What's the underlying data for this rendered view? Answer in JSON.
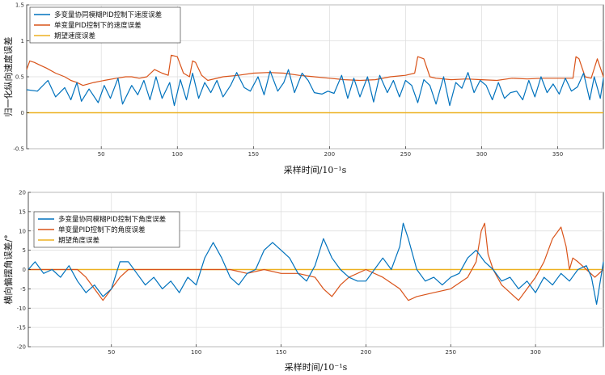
{
  "colors": {
    "series1": "#0072BD",
    "series2": "#D95319",
    "series3": "#EDB120"
  },
  "chart_data": [
    {
      "type": "line",
      "xlabel": "采样时间/10⁻¹s",
      "ylabel": "归一化纵向速度误差",
      "xlim": [
        1,
        380
      ],
      "ylim": [
        -0.5,
        1.5
      ],
      "xticks": [
        50,
        100,
        150,
        200,
        250,
        300,
        350
      ],
      "yticks": [
        -0.5,
        0,
        0.5,
        1,
        1.5
      ],
      "ytick_labels": [
        "-0.5",
        "0",
        "0.5",
        "1",
        "1.5"
      ],
      "grid": true,
      "legend_position": "top-left",
      "series": [
        {
          "name": "多变量协同模糊PID控制下速度误差",
          "color": "#0072BD",
          "x": [
            1,
            8,
            15,
            20,
            26,
            30,
            34,
            37,
            42,
            48,
            52,
            56,
            61,
            64,
            70,
            74,
            78,
            82,
            86,
            90,
            95,
            98,
            102,
            106,
            110,
            114,
            118,
            122,
            126,
            130,
            135,
            139,
            144,
            148,
            153,
            157,
            161,
            166,
            170,
            173,
            177,
            182,
            186,
            190,
            195,
            199,
            203,
            208,
            212,
            216,
            220,
            225,
            229,
            233,
            238,
            242,
            246,
            250,
            254,
            258,
            262,
            266,
            270,
            275,
            279,
            283,
            287,
            291,
            295,
            299,
            303,
            307,
            311,
            315,
            319,
            323,
            327,
            331,
            335,
            339,
            343,
            347,
            351,
            355,
            359,
            363,
            367,
            371,
            374,
            378,
            380
          ],
          "values": [
            0.32,
            0.3,
            0.45,
            0.22,
            0.35,
            0.18,
            0.42,
            0.16,
            0.33,
            0.14,
            0.38,
            0.2,
            0.48,
            0.12,
            0.38,
            0.25,
            0.45,
            0.18,
            0.5,
            0.2,
            0.42,
            0.1,
            0.46,
            0.18,
            0.55,
            0.2,
            0.42,
            0.28,
            0.45,
            0.22,
            0.38,
            0.56,
            0.35,
            0.3,
            0.5,
            0.25,
            0.58,
            0.3,
            0.42,
            0.6,
            0.28,
            0.55,
            0.45,
            0.28,
            0.26,
            0.3,
            0.27,
            0.52,
            0.2,
            0.48,
            0.22,
            0.5,
            0.15,
            0.52,
            0.28,
            0.45,
            0.22,
            0.45,
            0.38,
            0.14,
            0.46,
            0.38,
            0.12,
            0.5,
            0.1,
            0.42,
            0.34,
            0.56,
            0.28,
            0.45,
            0.38,
            0.18,
            0.42,
            0.2,
            0.28,
            0.3,
            0.18,
            0.45,
            0.22,
            0.5,
            0.28,
            0.4,
            0.26,
            0.48,
            0.3,
            0.36,
            0.55,
            0.18,
            0.5,
            0.2,
            0.48
          ]
        },
        {
          "name": "单变量PID控制下的速度误差",
          "color": "#D95319",
          "x": [
            1,
            3,
            6,
            10,
            14,
            20,
            26,
            30,
            34,
            38,
            45,
            52,
            60,
            66,
            70,
            75,
            80,
            85,
            90,
            94,
            96,
            100,
            104,
            108,
            110,
            112,
            116,
            120,
            130,
            140,
            150,
            160,
            170,
            180,
            190,
            200,
            210,
            220,
            230,
            240,
            250,
            256,
            258,
            262,
            266,
            270,
            280,
            290,
            300,
            310,
            320,
            330,
            340,
            350,
            360,
            362,
            364,
            368,
            372,
            376,
            380
          ],
          "values": [
            0.6,
            0.72,
            0.7,
            0.66,
            0.62,
            0.55,
            0.5,
            0.45,
            0.42,
            0.38,
            0.42,
            0.45,
            0.48,
            0.5,
            0.5,
            0.48,
            0.5,
            0.6,
            0.55,
            0.52,
            0.8,
            0.78,
            0.55,
            0.5,
            0.72,
            0.7,
            0.52,
            0.45,
            0.5,
            0.52,
            0.55,
            0.56,
            0.55,
            0.52,
            0.5,
            0.48,
            0.46,
            0.45,
            0.46,
            0.5,
            0.52,
            0.55,
            0.78,
            0.75,
            0.5,
            0.48,
            0.46,
            0.47,
            0.46,
            0.45,
            0.48,
            0.47,
            0.48,
            0.48,
            0.48,
            0.78,
            0.75,
            0.5,
            0.48,
            0.75,
            0.5
          ]
        },
        {
          "name": "期望速度误差",
          "color": "#EDB120",
          "x": [
            1,
            380
          ],
          "values": [
            0,
            0
          ]
        }
      ]
    },
    {
      "type": "line",
      "xlabel": "采样时间/10⁻¹s",
      "ylabel": "横向偏摆角误差/°",
      "xlim": [
        1,
        340
      ],
      "ylim": [
        -20,
        20
      ],
      "xticks": [
        50,
        100,
        150,
        200,
        250,
        300
      ],
      "yticks": [
        -20,
        -15,
        -10,
        -5,
        0,
        5,
        10,
        15,
        20
      ],
      "ytick_labels": [
        "-20",
        "-15",
        "-10",
        "-5",
        "0",
        "5",
        "10",
        "15",
        "20"
      ],
      "grid": true,
      "legend_position": "top-left",
      "series": [
        {
          "name": "多变量协同模糊PID控制下角度误差",
          "color": "#0072BD",
          "x": [
            1,
            5,
            10,
            15,
            20,
            25,
            30,
            35,
            40,
            45,
            50,
            55,
            60,
            65,
            70,
            75,
            80,
            85,
            90,
            95,
            100,
            105,
            110,
            115,
            120,
            125,
            130,
            135,
            140,
            145,
            150,
            155,
            160,
            165,
            170,
            175,
            180,
            185,
            190,
            195,
            200,
            205,
            210,
            215,
            220,
            222,
            225,
            230,
            235,
            240,
            245,
            250,
            255,
            260,
            265,
            270,
            275,
            280,
            285,
            290,
            295,
            300,
            305,
            310,
            315,
            320,
            325,
            330,
            333,
            336,
            340
          ],
          "values": [
            0,
            2,
            -1,
            0,
            -2,
            1,
            -3,
            -6,
            -4,
            -7,
            -5,
            2,
            2,
            -1,
            -4,
            -2,
            -5,
            -3,
            -6,
            -2,
            -4,
            3,
            7,
            3,
            -2,
            -4,
            -1,
            0,
            5,
            7,
            5,
            3,
            -1,
            -3,
            1,
            8,
            3,
            0,
            -2,
            -3,
            -3,
            0,
            3,
            0,
            6,
            12,
            8,
            0,
            -3,
            -2,
            -4,
            -2,
            -1,
            3,
            5,
            2,
            0,
            -3,
            -2,
            -5,
            -3,
            -6,
            -2,
            -4,
            -1,
            -3,
            0,
            1,
            -2,
            -9,
            2
          ]
        },
        {
          "name": "单变量PID控制下的角度误差",
          "color": "#D95319",
          "x": [
            1,
            10,
            20,
            30,
            35,
            40,
            45,
            50,
            55,
            60,
            70,
            80,
            90,
            100,
            110,
            120,
            130,
            140,
            150,
            160,
            170,
            175,
            180,
            185,
            190,
            200,
            210,
            220,
            225,
            230,
            240,
            250,
            260,
            265,
            268,
            270,
            272,
            275,
            280,
            285,
            290,
            295,
            300,
            305,
            310,
            315,
            318,
            320,
            322,
            325,
            330,
            335,
            340
          ],
          "values": [
            0,
            0,
            0,
            0,
            -2,
            -5,
            -8,
            -5,
            -2,
            0,
            0,
            0,
            0,
            0,
            0,
            0,
            -1,
            0,
            -1,
            -1,
            -2,
            -5,
            -7,
            -4,
            -2,
            0,
            -2,
            -5,
            -8,
            -7,
            -6,
            -5,
            -2,
            2,
            10,
            12,
            4,
            0,
            -4,
            -6,
            -8,
            -5,
            -2,
            2,
            8,
            11,
            6,
            0,
            3,
            2,
            0,
            -2,
            0
          ]
        },
        {
          "name": "期望角度误差",
          "color": "#EDB120",
          "x": [
            1,
            340
          ],
          "values": [
            0,
            0
          ]
        }
      ]
    }
  ]
}
